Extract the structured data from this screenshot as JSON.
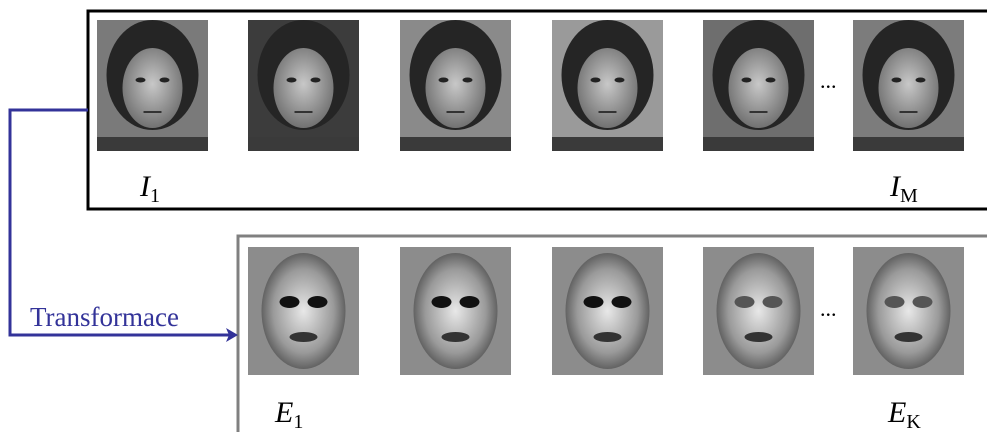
{
  "top_row": {
    "labels": [
      {
        "symbol": "I",
        "subscript": "1"
      },
      {
        "symbol": "I",
        "subscript": "M"
      }
    ],
    "ellipsis": "..."
  },
  "arrow_label": "Transformace",
  "bottom_row": {
    "labels": [
      {
        "symbol": "E",
        "subscript": "1"
      },
      {
        "symbol": "E",
        "subscript": "K"
      }
    ],
    "ellipsis": "..."
  }
}
